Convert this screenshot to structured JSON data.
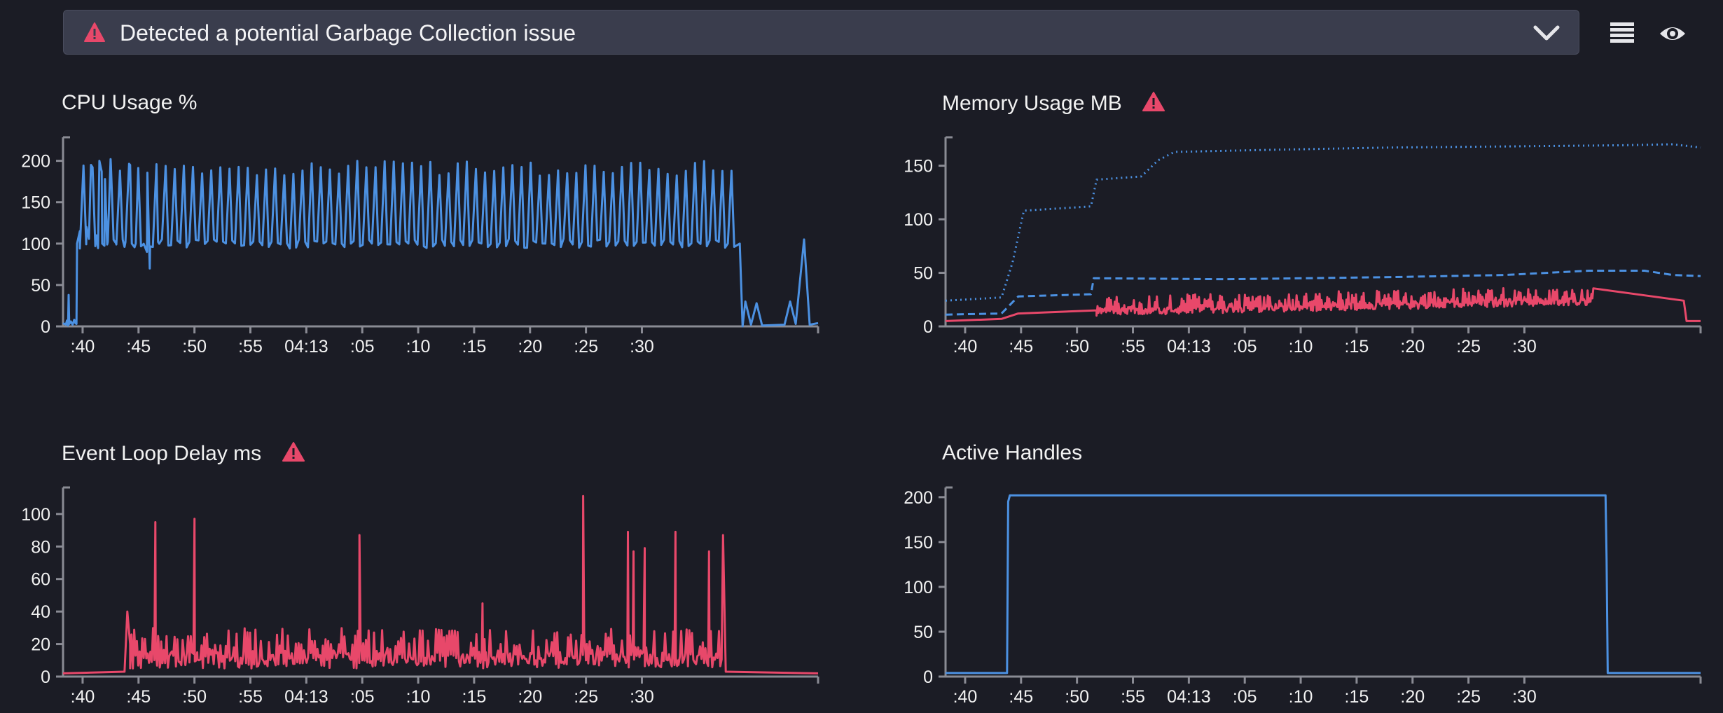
{
  "alert": {
    "message": "Detected a potential Garbage Collection issue",
    "icon": "warning-triangle-icon",
    "expand_icon": "chevron-down-icon"
  },
  "toolbar": {
    "list_icon": "list-icon",
    "view_icon": "eye-icon"
  },
  "colors": {
    "blue": "#4c91e2",
    "red": "#e8486a",
    "axis": "#8a8b94",
    "alert_bg": "#3a3d4d"
  },
  "charts": {
    "cpu": {
      "title": "CPU Usage %",
      "has_warning": false,
      "chart_data": {
        "type": "line",
        "xticks": [
          ":40",
          ":45",
          ":50",
          ":55",
          "04:13",
          ":05",
          ":10",
          ":15",
          ":20",
          ":25",
          ":30"
        ],
        "yticks": [
          0,
          50,
          100,
          150,
          200
        ],
        "ylim": [
          0,
          220
        ],
        "series": [
          {
            "color": "#4c91e2",
            "style": "solid",
            "points": [
              [
                0,
                4
              ],
              [
                0.05,
                2
              ],
              [
                0.07,
                7
              ],
              [
                0.08,
                5
              ],
              [
                0.09,
                1
              ],
              [
                0.1,
                38
              ],
              [
                0.11,
                3
              ],
              [
                0.14,
                6
              ],
              [
                0.17,
                2
              ],
              [
                0.2,
                8
              ],
              [
                0.22,
                4
              ],
              [
                0.24,
                3
              ],
              [
                0.25,
                100
              ],
              [
                0.3,
                115
              ],
              [
                0.35,
                170
              ],
              [
                0.42,
                120
              ],
              [
                0.5,
                195
              ],
              [
                0.6,
                110
              ],
              [
                0.65,
                200
              ],
              [
                0.7,
                100
              ],
              [
                0.75,
                178
              ],
              [
                0.8,
                102
              ],
              [
                0.85,
                202
              ],
              [
                0.95,
                100
              ],
              [
                1.1,
                96
              ],
              [
                1.2,
                195
              ],
              [
                1.3,
                100
              ],
              [
                1.5,
                90
              ],
              [
                1.55,
                70
              ],
              [
                1.6,
                96
              ],
              [
                1.7,
                102
              ],
              [
                12.1,
                100
              ],
              [
                12.15,
                0
              ],
              [
                12.2,
                30
              ],
              [
                12.3,
                2
              ],
              [
                12.4,
                28
              ],
              [
                12.5,
                1
              ],
              [
                12.9,
                2
              ],
              [
                13.0,
                30
              ],
              [
                13.1,
                3
              ],
              [
                13.25,
                105
              ],
              [
                13.35,
                2
              ],
              [
                13.5,
                4
              ]
            ],
            "spike_band": {
              "from": 0.3,
              "to": 12.05,
              "count": 72,
              "base": 100,
              "peak": 200
            }
          }
        ]
      }
    },
    "memory": {
      "title": "Memory Usage MB",
      "has_warning": true,
      "chart_data": {
        "type": "line",
        "xticks": [
          ":40",
          ":45",
          ":50",
          ":55",
          "04:13",
          ":05",
          ":10",
          ":15",
          ":20",
          ":25",
          ":30"
        ],
        "yticks": [
          0,
          50,
          100,
          150
        ],
        "ylim": [
          0,
          170
        ],
        "series": [
          {
            "color": "#4c91e2",
            "style": "dotted",
            "points": [
              [
                0,
                24
              ],
              [
                1.0,
                27
              ],
              [
                1.05,
                35
              ],
              [
                1.2,
                60
              ],
              [
                1.4,
                108
              ],
              [
                2.6,
                112
              ],
              [
                2.7,
                137
              ],
              [
                3.5,
                140
              ],
              [
                3.8,
                155
              ],
              [
                4.1,
                163
              ],
              [
                4.2,
                163
              ],
              [
                6,
                165
              ],
              [
                8,
                167
              ],
              [
                10,
                168
              ],
              [
                12,
                169
              ],
              [
                13,
                170
              ],
              [
                13.5,
                167
              ]
            ]
          },
          {
            "color": "#4c91e2",
            "style": "dashed",
            "points": [
              [
                0,
                11
              ],
              [
                1.0,
                12
              ],
              [
                1.3,
                28
              ],
              [
                2.6,
                30
              ],
              [
                2.65,
                45
              ],
              [
                5,
                44
              ],
              [
                8,
                46
              ],
              [
                10,
                48
              ],
              [
                11.5,
                52
              ],
              [
                12.5,
                52
              ],
              [
                13,
                48
              ],
              [
                13.5,
                47
              ]
            ]
          },
          {
            "color": "#e8486a",
            "style": "solid",
            "points": [
              [
                0,
                5
              ],
              [
                1.0,
                7
              ],
              [
                1.3,
                12
              ],
              [
                2.7,
                15
              ],
              [
                13.2,
                24
              ],
              [
                13.25,
                5
              ],
              [
                13.5,
                5
              ]
            ],
            "spike_band": {
              "from": 2.7,
              "to": 11.6,
              "count": 260,
              "base": 10,
              "peak": 28
            }
          }
        ]
      }
    },
    "event_loop": {
      "title": "Event Loop Delay ms",
      "has_warning": true,
      "chart_data": {
        "type": "line",
        "xticks": [
          ":40",
          ":45",
          ":50",
          ":55",
          "04:13",
          ":05",
          ":10",
          ":15",
          ":20",
          ":25",
          ":30"
        ],
        "yticks": [
          0,
          20,
          40,
          60,
          80,
          100
        ],
        "ylim": [
          0,
          112
        ],
        "series": [
          {
            "color": "#e8486a",
            "style": "solid",
            "points": [
              [
                0,
                2
              ],
              [
                1.1,
                3
              ],
              [
                1.15,
                40
              ],
              [
                1.2,
                20
              ],
              [
                1.7,
                25
              ],
              [
                1.65,
                95
              ],
              [
                1.75,
                10
              ],
              [
                2.35,
                97
              ],
              [
                2.4,
                15
              ],
              [
                5.3,
                87
              ],
              [
                5.35,
                10
              ],
              [
                7.5,
                45
              ],
              [
                7.55,
                10
              ],
              [
                9.3,
                111
              ],
              [
                9.35,
                10
              ],
              [
                10.1,
                89
              ],
              [
                10.2,
                77
              ],
              [
                10.4,
                79
              ],
              [
                10.95,
                89
              ],
              [
                11.0,
                10
              ],
              [
                11.55,
                77
              ],
              [
                11.6,
                10
              ],
              [
                11.8,
                87
              ],
              [
                11.85,
                3
              ],
              [
                13.5,
                2
              ]
            ],
            "spike_band": {
              "from": 1.2,
              "to": 11.8,
              "count": 220,
              "base": 5,
              "peak": 30
            }
          }
        ]
      }
    },
    "handles": {
      "title": "Active Handles",
      "has_warning": false,
      "chart_data": {
        "type": "line",
        "xticks": [
          ":40",
          ":45",
          ":50",
          ":55",
          "04:13",
          ":05",
          ":10",
          ":15",
          ":20",
          ":25",
          ":30"
        ],
        "yticks": [
          0,
          50,
          100,
          150,
          200
        ],
        "ylim": [
          0,
          203
        ],
        "series": [
          {
            "color": "#4c91e2",
            "style": "solid",
            "points": [
              [
                0,
                4
              ],
              [
                1.1,
                4
              ],
              [
                1.12,
                195
              ],
              [
                1.15,
                202
              ],
              [
                11.8,
                202
              ],
              [
                11.82,
                130
              ],
              [
                11.84,
                4
              ],
              [
                13.5,
                4
              ]
            ]
          }
        ]
      }
    }
  }
}
